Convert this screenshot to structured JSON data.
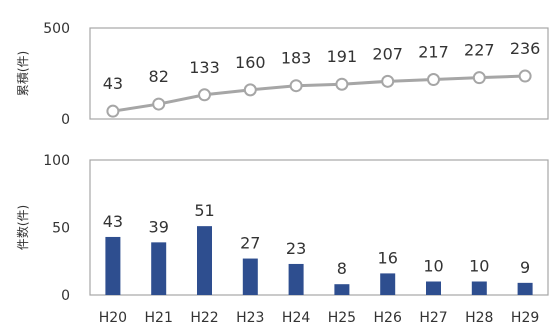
{
  "chart_data": [
    {
      "type": "line",
      "ylabel": "累積(件)",
      "ylim": [
        0,
        500
      ],
      "yticks": [
        0,
        500
      ],
      "categories": [
        "H20",
        "H21",
        "H22",
        "H23",
        "H24",
        "H25",
        "H26",
        "H27",
        "H28",
        "H29"
      ],
      "series": [
        {
          "values": [
            43,
            82,
            133,
            160,
            183,
            191,
            207,
            217,
            227,
            236
          ]
        }
      ],
      "colors": {
        "line": "#a6a6a6",
        "marker_fill": "#ffffff",
        "frame": "#a6a6a6"
      }
    },
    {
      "type": "bar",
      "ylabel": "件数(件)",
      "ylim": [
        0,
        100
      ],
      "yticks": [
        0,
        50,
        100
      ],
      "categories": [
        "H20",
        "H21",
        "H22",
        "H23",
        "H24",
        "H25",
        "H26",
        "H27",
        "H28",
        "H29"
      ],
      "series": [
        {
          "values": [
            43,
            39,
            51,
            27,
            23,
            8,
            16,
            10,
            10,
            9
          ]
        }
      ],
      "colors": {
        "bar": "#2e4e8f",
        "frame": "#a6a6a6"
      }
    }
  ]
}
